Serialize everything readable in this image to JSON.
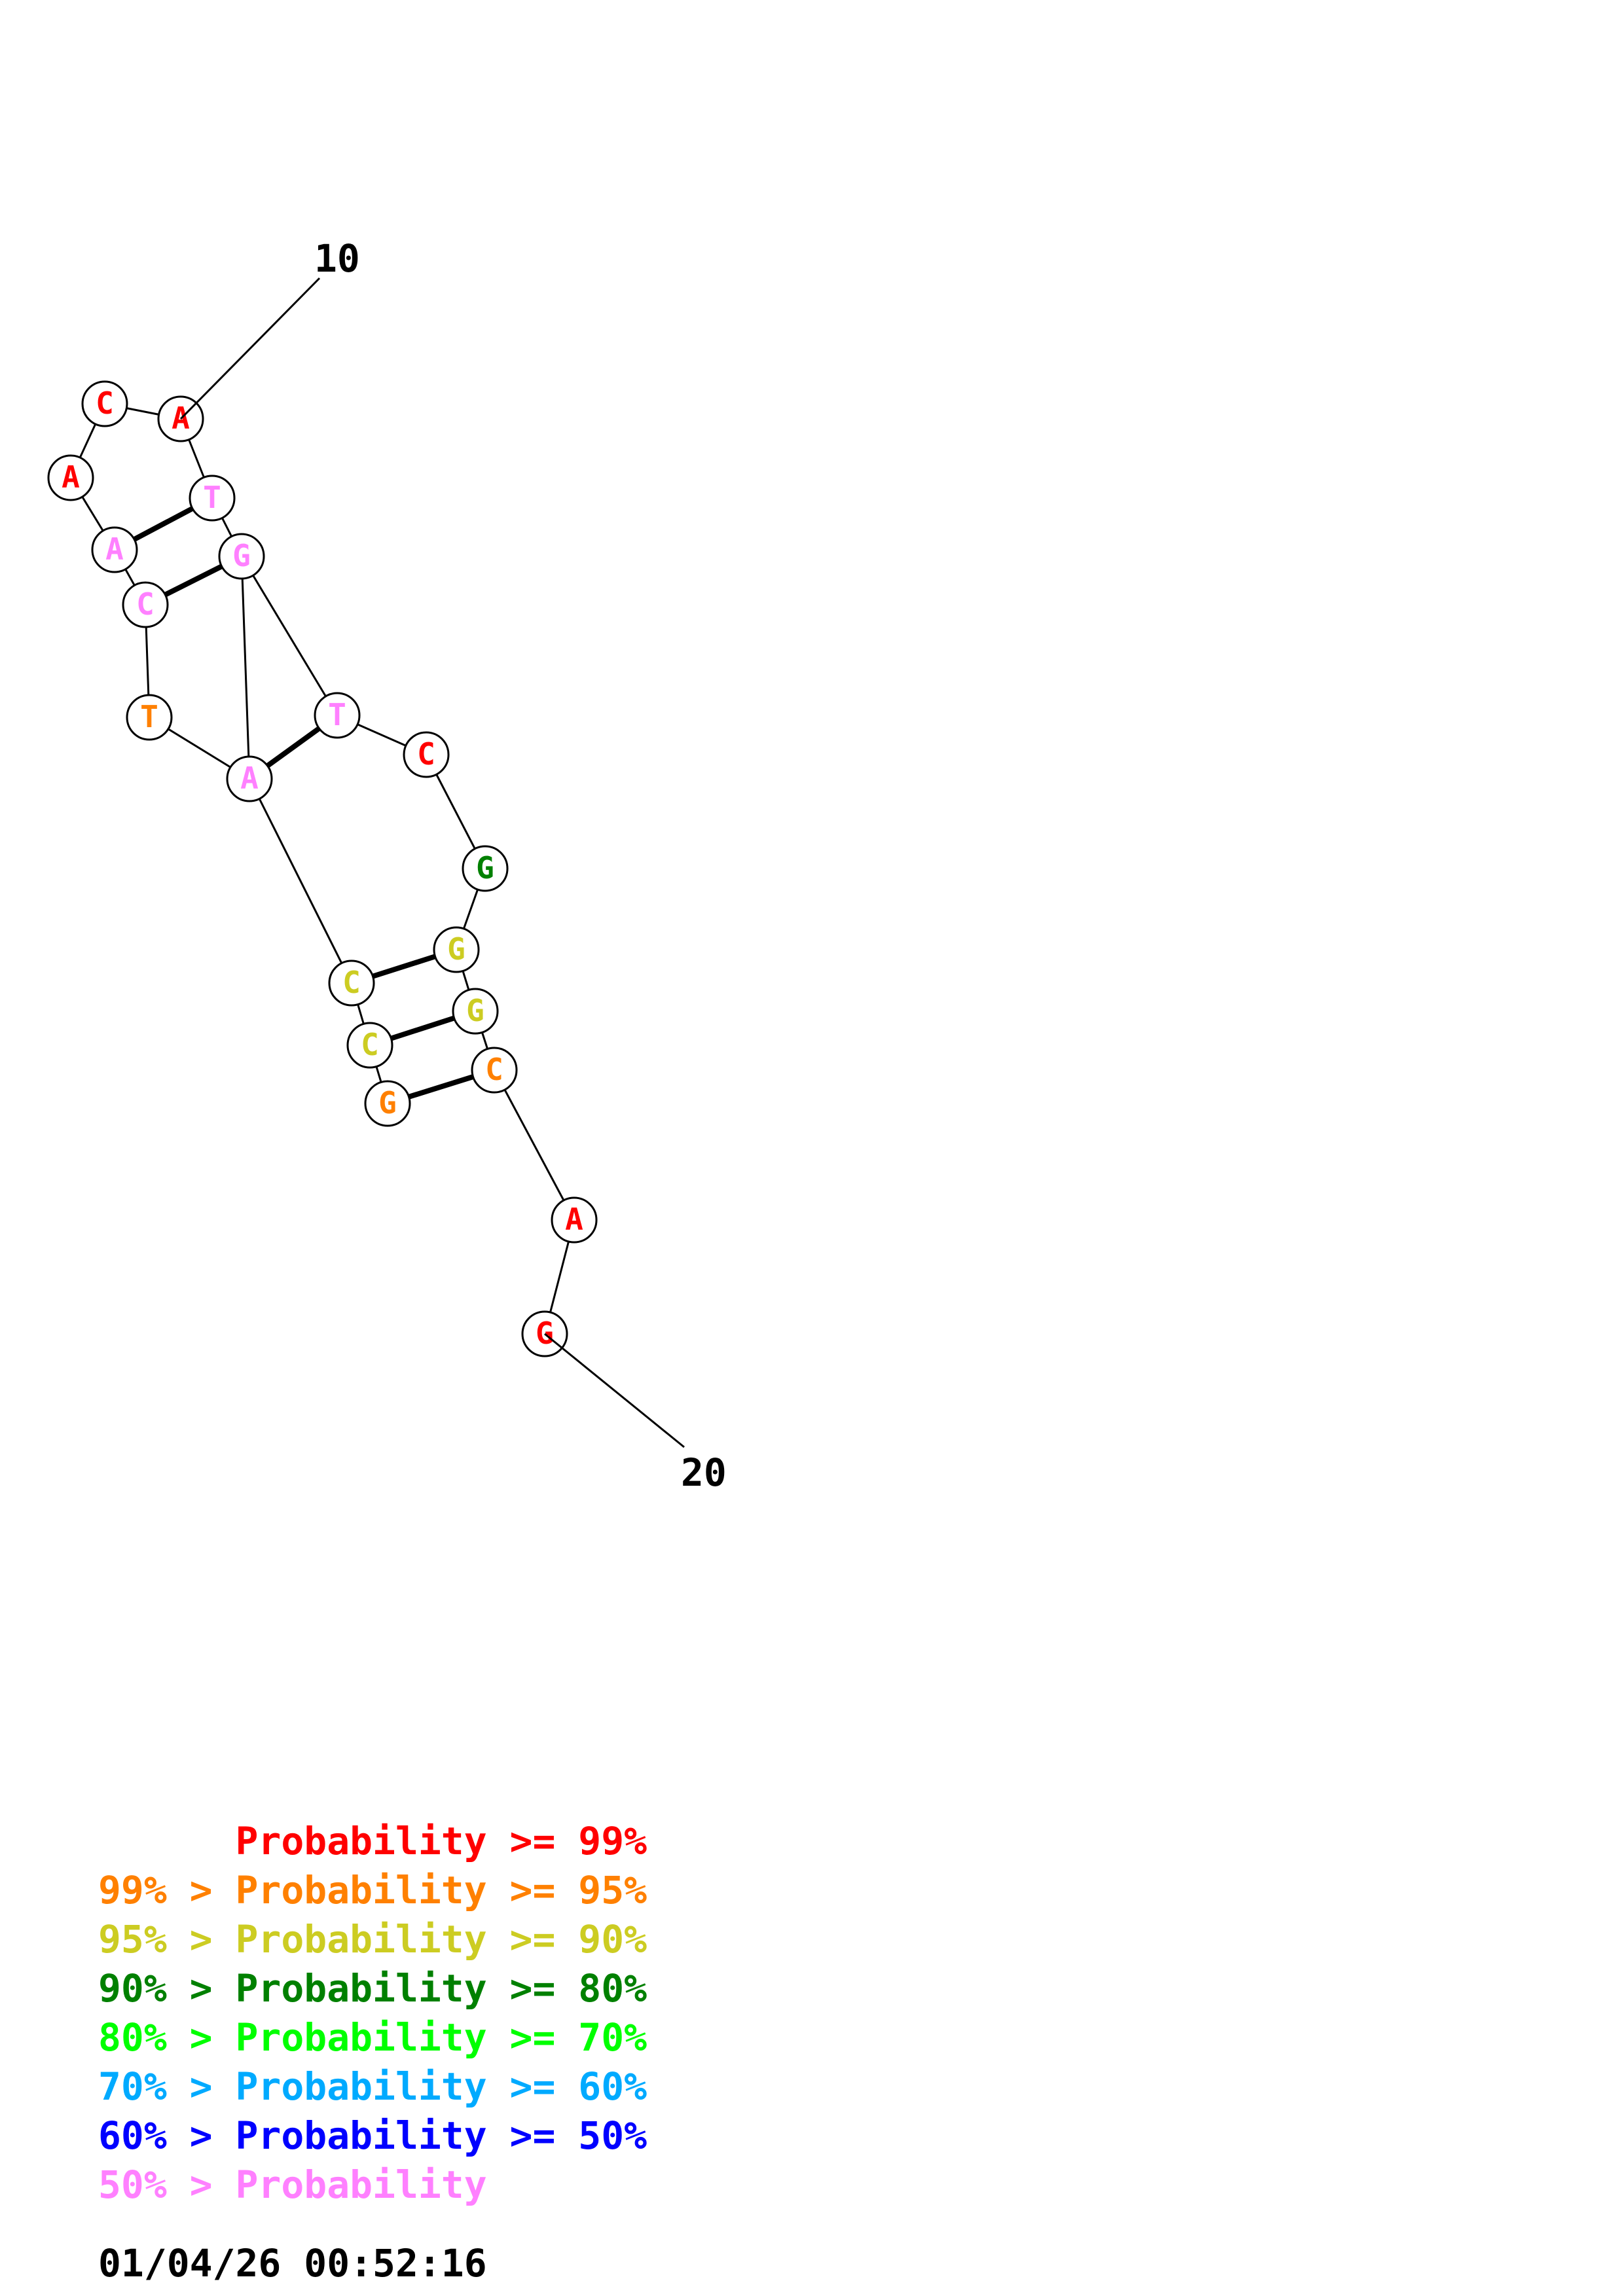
{
  "structure": {
    "end_labels": [
      {
        "text": "10",
        "attach": 0
      },
      {
        "text": "20",
        "attach": 20
      }
    ],
    "nucleotides": [
      {
        "base": "A",
        "color": "#ff0000"
      },
      {
        "base": "C",
        "color": "#ff0000"
      },
      {
        "base": "A",
        "color": "#ff0000"
      },
      {
        "base": "A",
        "color": "#ff80ff"
      },
      {
        "base": "C",
        "color": "#ff80ff"
      },
      {
        "base": "T",
        "color": "#ff8000"
      },
      {
        "base": "A",
        "color": "#ff80ff"
      },
      {
        "base": "C",
        "color": "#cccc22"
      },
      {
        "base": "C",
        "color": "#cccc22"
      },
      {
        "base": "G",
        "color": "#ff8000"
      },
      {
        "base": "T",
        "color": "#ff80ff"
      },
      {
        "base": "G",
        "color": "#ff80ff"
      },
      {
        "base": "T",
        "color": "#ff80ff"
      },
      {
        "base": "C",
        "color": "#ff0000"
      },
      {
        "base": "G",
        "color": "#008000"
      },
      {
        "base": "G",
        "color": "#cccc22"
      },
      {
        "base": "G",
        "color": "#cccc22"
      },
      {
        "base": "C",
        "color": "#ff8000"
      },
      {
        "base": "A",
        "color": "#ff0000"
      },
      {
        "base": "G",
        "color": "#ff0000"
      }
    ],
    "backbone": [
      [
        0,
        1
      ],
      [
        1,
        2
      ],
      [
        2,
        3
      ],
      [
        3,
        4
      ],
      [
        4,
        5
      ],
      [
        5,
        6
      ],
      [
        6,
        7
      ],
      [
        7,
        8
      ],
      [
        8,
        9
      ],
      [
        0,
        10
      ],
      [
        10,
        11
      ],
      [
        11,
        12
      ],
      [
        12,
        13
      ],
      [
        13,
        14
      ],
      [
        14,
        15
      ],
      [
        15,
        16
      ],
      [
        16,
        17
      ],
      [
        17,
        18
      ],
      [
        18,
        19
      ],
      [
        6,
        11
      ]
    ],
    "pairs": [
      [
        3,
        10
      ],
      [
        4,
        11
      ],
      [
        6,
        12
      ],
      [
        7,
        15
      ],
      [
        8,
        16
      ],
      [
        9,
        17
      ]
    ]
  },
  "legend": [
    {
      "prefix": "",
      "text": "Probability >= 99%",
      "color": "#ff0000"
    },
    {
      "prefix": "99% > ",
      "text": "Probability >= 95%",
      "color": "#ff8000"
    },
    {
      "prefix": "95% > ",
      "text": "Probability >= 90%",
      "color": "#cccc22"
    },
    {
      "prefix": "90% > ",
      "text": "Probability >= 80%",
      "color": "#008000"
    },
    {
      "prefix": "80% > ",
      "text": "Probability >= 70%",
      "color": "#00ff00"
    },
    {
      "prefix": "70% > ",
      "text": "Probability >= 60%",
      "color": "#00aaff"
    },
    {
      "prefix": "60% > ",
      "text": "Probability >= 50%",
      "color": "#0000ff"
    },
    {
      "prefix": "50% > ",
      "text": "Probability",
      "color": "#ff80ff"
    }
  ],
  "timestamp": "01/04/26 00:52:16"
}
